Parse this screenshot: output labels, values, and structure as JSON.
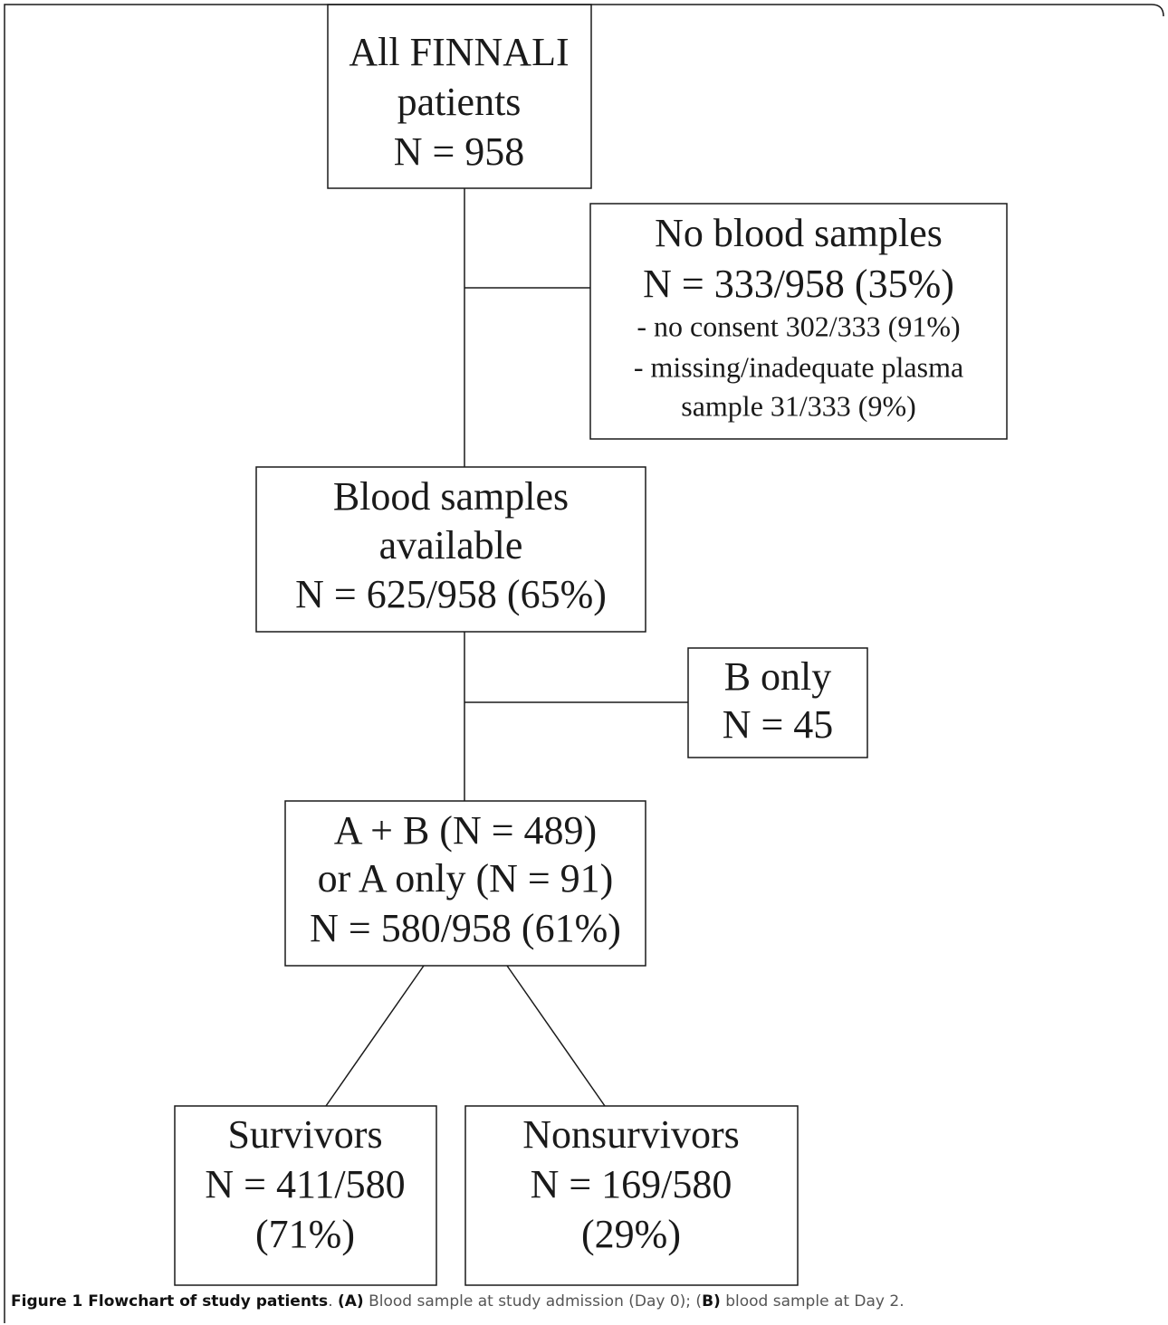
{
  "nodes": [
    {
      "lines": [
        "All FINNALI",
        "patients",
        "N = 958"
      ]
    },
    {
      "lines": [
        "No blood samples",
        "N = 333/958 (35%)",
        "- no consent 302/333 (91%)",
        "- missing/inadequate plasma",
        "sample 31/333 (9%)"
      ]
    },
    {
      "lines": [
        "Blood samples",
        "available",
        "N =  625/958 (65%)"
      ]
    },
    {
      "lines": [
        "B only",
        "N = 45"
      ]
    },
    {
      "lines": [
        "A + B (N = 489)",
        "or A only (N = 91)",
        "N = 580/958 (61%)"
      ]
    },
    {
      "lines": [
        "Survivors",
        "N = 411/580",
        "(71%)"
      ]
    },
    {
      "lines": [
        "Nonsurvivors",
        "N = 169/580",
        "(29%)"
      ]
    }
  ],
  "caption": [
    {
      "text": "Figure 1 Flowchart of study patients",
      "bold": true
    },
    {
      "text": ". ",
      "bold": false
    },
    {
      "text": "(A)",
      "bold": true
    },
    {
      "text": " Blood sample at study admission (Day 0); (",
      "bold": false
    },
    {
      "text": "B)",
      "bold": true
    },
    {
      "text": " blood sample at Day 2.",
      "bold": false
    }
  ]
}
